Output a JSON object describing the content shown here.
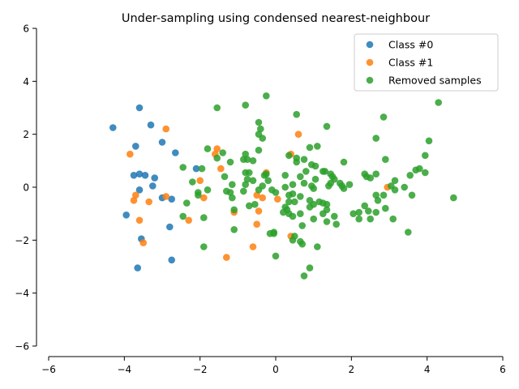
{
  "chart_data": {
    "type": "scatter",
    "title": "Under-sampling using condensed nearest-neighbour",
    "xlabel": "",
    "ylabel": "",
    "xlim": [
      -6,
      6
    ],
    "ylim": [
      -6,
      6
    ],
    "xticks": [
      -6,
      -4,
      -2,
      0,
      2,
      4,
      6
    ],
    "yticks": [
      -6,
      -4,
      -2,
      0,
      2,
      4,
      6
    ],
    "grid": false,
    "legend_position": "top-right",
    "series": [
      {
        "name": "Class #0",
        "color": "#1f77b4",
        "points": [
          [
            -4.3,
            2.25
          ],
          [
            -3.6,
            3.0
          ],
          [
            -3.3,
            2.35
          ],
          [
            -3.7,
            1.55
          ],
          [
            -3.0,
            1.7
          ],
          [
            -2.65,
            1.3
          ],
          [
            -3.6,
            0.5
          ],
          [
            -3.45,
            0.45
          ],
          [
            -3.2,
            0.35
          ],
          [
            -3.75,
            0.45
          ],
          [
            -3.25,
            0.05
          ],
          [
            -3.6,
            -0.1
          ],
          [
            -3.0,
            -0.4
          ],
          [
            -2.75,
            -0.45
          ],
          [
            -3.95,
            -1.05
          ],
          [
            -2.8,
            -1.5
          ],
          [
            -3.55,
            -1.95
          ],
          [
            -3.65,
            -3.05
          ],
          [
            -2.75,
            -2.75
          ],
          [
            -2.1,
            0.7
          ]
        ]
      },
      {
        "name": "Class #1",
        "color": "#ff7f0e",
        "points": [
          [
            -3.85,
            1.25
          ],
          [
            -3.7,
            -0.3
          ],
          [
            -3.75,
            -0.5
          ],
          [
            -3.35,
            -0.55
          ],
          [
            -3.6,
            -1.25
          ],
          [
            -3.5,
            -2.1
          ],
          [
            -2.9,
            2.2
          ],
          [
            -2.9,
            -0.35
          ],
          [
            -2.3,
            -1.25
          ],
          [
            -2.0,
            0.25
          ],
          [
            -1.9,
            -0.4
          ],
          [
            -1.55,
            1.45
          ],
          [
            -1.6,
            1.25
          ],
          [
            -1.45,
            0.7
          ],
          [
            -1.1,
            -0.95
          ],
          [
            -1.3,
            -2.65
          ],
          [
            -0.5,
            -0.3
          ],
          [
            -0.35,
            -0.4
          ],
          [
            -0.45,
            -0.9
          ],
          [
            -0.5,
            -1.4
          ],
          [
            -0.6,
            -2.25
          ],
          [
            -0.25,
            0.55
          ],
          [
            0.05,
            -0.45
          ],
          [
            0.6,
            2.0
          ],
          [
            0.4,
            1.25
          ],
          [
            0.4,
            -1.85
          ],
          [
            2.95,
            0.0
          ]
        ]
      },
      {
        "name": "Removed samples",
        "color": "#2ca02c",
        "points": [
          [
            -1.55,
            3.0
          ],
          [
            -0.8,
            3.1
          ],
          [
            -0.25,
            3.45
          ],
          [
            -0.45,
            2.45
          ],
          [
            -0.4,
            2.2
          ],
          [
            -0.45,
            2.0
          ],
          [
            -0.35,
            1.85
          ],
          [
            0.55,
            2.75
          ],
          [
            1.35,
            2.3
          ],
          [
            2.65,
            1.85
          ],
          [
            2.85,
            2.65
          ],
          [
            4.05,
            1.75
          ],
          [
            4.3,
            3.2
          ],
          [
            0.9,
            1.5
          ],
          [
            1.1,
            1.55
          ],
          [
            -1.8,
            1.45
          ],
          [
            -1.4,
            1.3
          ],
          [
            -1.55,
            1.1
          ],
          [
            -1.2,
            0.95
          ],
          [
            -0.8,
            1.25
          ],
          [
            -0.85,
            1.05
          ],
          [
            -0.75,
            1.05
          ],
          [
            -0.45,
            1.4
          ],
          [
            -0.6,
            1.0
          ],
          [
            0.35,
            1.2
          ],
          [
            0.55,
            1.1
          ],
          [
            0.75,
            1.05
          ],
          [
            0.55,
            0.95
          ],
          [
            0.95,
            0.85
          ],
          [
            1.05,
            0.8
          ],
          [
            1.3,
            0.6
          ],
          [
            1.45,
            0.5
          ],
          [
            1.5,
            0.4
          ],
          [
            1.8,
            0.95
          ],
          [
            2.9,
            1.05
          ],
          [
            3.95,
            1.2
          ],
          [
            3.7,
            0.65
          ],
          [
            3.8,
            0.7
          ],
          [
            3.95,
            0.55
          ],
          [
            3.55,
            0.45
          ],
          [
            2.65,
            0.5
          ],
          [
            2.5,
            0.35
          ],
          [
            2.35,
            0.5
          ],
          [
            2.4,
            0.4
          ],
          [
            3.15,
            0.25
          ],
          [
            3.05,
            0.05
          ],
          [
            3.15,
            -0.1
          ],
          [
            3.4,
            0.0
          ],
          [
            -2.45,
            0.75
          ],
          [
            -2.2,
            0.2
          ],
          [
            -2.05,
            -0.3
          ],
          [
            -2.05,
            -0.2
          ],
          [
            -1.95,
            0.7
          ],
          [
            -1.8,
            -0.1
          ],
          [
            -1.35,
            0.4
          ],
          [
            -1.3,
            -0.15
          ],
          [
            -1.2,
            -0.2
          ],
          [
            -1.15,
            0.1
          ],
          [
            -1.15,
            -0.4
          ],
          [
            -0.85,
            -0.15
          ],
          [
            -0.8,
            0.1
          ],
          [
            -0.75,
            0.3
          ],
          [
            -0.8,
            0.55
          ],
          [
            -0.7,
            0.55
          ],
          [
            -0.6,
            0.25
          ],
          [
            -0.45,
            -0.1
          ],
          [
            -0.35,
            0.05
          ],
          [
            -0.3,
            0.45
          ],
          [
            -0.25,
            0.5
          ],
          [
            -0.2,
            0.25
          ],
          [
            -0.1,
            -0.1
          ],
          [
            0.0,
            -0.2
          ],
          [
            0.25,
            0.45
          ],
          [
            0.25,
            0.0
          ],
          [
            0.35,
            -0.3
          ],
          [
            0.45,
            -0.25
          ],
          [
            0.45,
            0.1
          ],
          [
            0.5,
            -0.55
          ],
          [
            0.65,
            -0.35
          ],
          [
            0.65,
            0.4
          ],
          [
            0.75,
            0.15
          ],
          [
            0.8,
            0.6
          ],
          [
            0.95,
            0.05
          ],
          [
            1.0,
            -0.05
          ],
          [
            1.05,
            0.3
          ],
          [
            1.25,
            0.6
          ],
          [
            1.4,
            0.05
          ],
          [
            1.45,
            0.15
          ],
          [
            1.55,
            0.3
          ],
          [
            1.7,
            0.15
          ],
          [
            1.75,
            0.05
          ],
          [
            1.8,
            -0.05
          ],
          [
            1.95,
            0.1
          ],
          [
            0.9,
            -0.5
          ],
          [
            1.0,
            -0.65
          ],
          [
            1.15,
            -0.55
          ],
          [
            1.25,
            -0.6
          ],
          [
            1.35,
            -0.65
          ],
          [
            1.35,
            -0.85
          ],
          [
            0.9,
            -0.75
          ],
          [
            0.35,
            -0.55
          ],
          [
            0.25,
            -0.75
          ],
          [
            0.3,
            -0.85
          ],
          [
            0.2,
            -0.95
          ],
          [
            0.35,
            -1.0
          ],
          [
            0.45,
            -1.1
          ],
          [
            0.65,
            -1.0
          ],
          [
            0.7,
            -1.45
          ],
          [
            0.65,
            -2.05
          ],
          [
            0.7,
            -2.15
          ],
          [
            0.5,
            -1.85
          ],
          [
            0.45,
            -2.0
          ],
          [
            1.0,
            -1.2
          ],
          [
            1.1,
            -2.25
          ],
          [
            1.25,
            -1.0
          ],
          [
            1.35,
            -1.3
          ],
          [
            1.55,
            -1.1
          ],
          [
            1.6,
            -1.4
          ],
          [
            0.9,
            -3.05
          ],
          [
            0.75,
            -3.35
          ],
          [
            -0.05,
            -1.75
          ],
          [
            -0.05,
            -1.7
          ],
          [
            0.0,
            -2.6
          ],
          [
            -0.15,
            -1.75
          ],
          [
            -0.55,
            -0.65
          ],
          [
            -0.7,
            -0.7
          ],
          [
            -1.1,
            -1.6
          ],
          [
            -1.1,
            -0.85
          ],
          [
            -1.9,
            -1.15
          ],
          [
            -1.9,
            -2.25
          ],
          [
            -2.45,
            -1.1
          ],
          [
            -2.35,
            -0.6
          ],
          [
            2.05,
            -1.0
          ],
          [
            2.2,
            -0.95
          ],
          [
            2.35,
            -0.7
          ],
          [
            2.45,
            -0.9
          ],
          [
            2.5,
            -1.2
          ],
          [
            2.65,
            -0.95
          ],
          [
            2.7,
            -0.5
          ],
          [
            2.65,
            -0.3
          ],
          [
            2.85,
            -0.3
          ],
          [
            2.9,
            -0.8
          ],
          [
            3.1,
            -1.2
          ],
          [
            3.6,
            -0.3
          ],
          [
            3.5,
            -1.7
          ],
          [
            4.7,
            -0.4
          ],
          [
            2.2,
            -1.2
          ]
        ]
      }
    ]
  }
}
